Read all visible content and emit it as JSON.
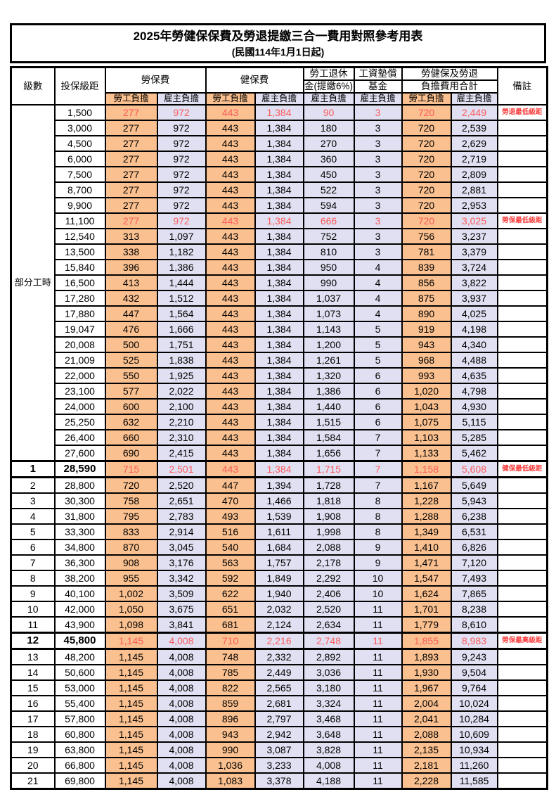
{
  "page": {
    "title": "2025年勞健保保費及勞退提繳三合一費用對照參考用表",
    "subtitle": "(民國114年1月1日起)"
  },
  "colors": {
    "employee_bg": "#FAC08F",
    "employer_bg": "#E0E0F2",
    "highlight_red": "#FB5B5B",
    "note_red": "#FA3C3C"
  },
  "header": {
    "level": "級數",
    "salary": "投保級距",
    "labor": "勞保費",
    "health": "健保費",
    "pension1": "勞工退休",
    "pension2": "金(提繳6%)",
    "fund1": "工資墊償",
    "fund2": "基金",
    "total1": "勞健保及勞退",
    "total2": "負擔費用合計",
    "remark": "備註",
    "employee": "勞工負擔",
    "employer": "雇主負擔"
  },
  "part_time_label": "部分工時",
  "rows": [
    {
      "level": "部分工時",
      "level_rowspan": 23,
      "salary": "1,500",
      "v": [
        "277",
        "972",
        "443",
        "1,384",
        "90",
        "3",
        "720",
        "2,449"
      ],
      "red": true,
      "note": "勞退最低級距"
    },
    {
      "salary": "3,000",
      "v": [
        "277",
        "972",
        "443",
        "1,384",
        "180",
        "3",
        "720",
        "2,539"
      ]
    },
    {
      "salary": "4,500",
      "v": [
        "277",
        "972",
        "443",
        "1,384",
        "270",
        "3",
        "720",
        "2,629"
      ]
    },
    {
      "salary": "6,000",
      "v": [
        "277",
        "972",
        "443",
        "1,384",
        "360",
        "3",
        "720",
        "2,719"
      ]
    },
    {
      "salary": "7,500",
      "v": [
        "277",
        "972",
        "443",
        "1,384",
        "450",
        "3",
        "720",
        "2,809"
      ]
    },
    {
      "salary": "8,700",
      "v": [
        "277",
        "972",
        "443",
        "1,384",
        "522",
        "3",
        "720",
        "2,881"
      ]
    },
    {
      "salary": "9,900",
      "v": [
        "277",
        "972",
        "443",
        "1,384",
        "594",
        "3",
        "720",
        "2,953"
      ]
    },
    {
      "salary": "11,100",
      "v": [
        "277",
        "972",
        "443",
        "1,384",
        "666",
        "3",
        "720",
        "3,025"
      ],
      "red": true,
      "note": "勞保最低級距"
    },
    {
      "salary": "12,540",
      "v": [
        "313",
        "1,097",
        "443",
        "1,384",
        "752",
        "3",
        "756",
        "3,237"
      ]
    },
    {
      "salary": "13,500",
      "v": [
        "338",
        "1,182",
        "443",
        "1,384",
        "810",
        "3",
        "781",
        "3,379"
      ]
    },
    {
      "salary": "15,840",
      "v": [
        "396",
        "1,386",
        "443",
        "1,384",
        "950",
        "4",
        "839",
        "3,724"
      ]
    },
    {
      "salary": "16,500",
      "v": [
        "413",
        "1,444",
        "443",
        "1,384",
        "990",
        "4",
        "856",
        "3,822"
      ]
    },
    {
      "salary": "17,280",
      "v": [
        "432",
        "1,512",
        "443",
        "1,384",
        "1,037",
        "4",
        "875",
        "3,937"
      ]
    },
    {
      "salary": "17,880",
      "v": [
        "447",
        "1,564",
        "443",
        "1,384",
        "1,073",
        "4",
        "890",
        "4,025"
      ]
    },
    {
      "salary": "19,047",
      "v": [
        "476",
        "1,666",
        "443",
        "1,384",
        "1,143",
        "5",
        "919",
        "4,198"
      ]
    },
    {
      "salary": "20,008",
      "v": [
        "500",
        "1,751",
        "443",
        "1,384",
        "1,200",
        "5",
        "943",
        "4,340"
      ]
    },
    {
      "salary": "21,009",
      "v": [
        "525",
        "1,838",
        "443",
        "1,384",
        "1,261",
        "5",
        "968",
        "4,488"
      ]
    },
    {
      "salary": "22,000",
      "v": [
        "550",
        "1,925",
        "443",
        "1,384",
        "1,320",
        "6",
        "993",
        "4,635"
      ]
    },
    {
      "salary": "23,100",
      "v": [
        "577",
        "2,022",
        "443",
        "1,384",
        "1,386",
        "6",
        "1,020",
        "4,798"
      ]
    },
    {
      "salary": "24,000",
      "v": [
        "600",
        "2,100",
        "443",
        "1,384",
        "1,440",
        "6",
        "1,043",
        "4,930"
      ]
    },
    {
      "salary": "25,250",
      "v": [
        "632",
        "2,210",
        "443",
        "1,384",
        "1,515",
        "6",
        "1,075",
        "5,115"
      ]
    },
    {
      "salary": "26,400",
      "v": [
        "660",
        "2,310",
        "443",
        "1,384",
        "1,584",
        "7",
        "1,103",
        "5,285"
      ]
    },
    {
      "salary": "27,600",
      "v": [
        "690",
        "2,415",
        "443",
        "1,384",
        "1,656",
        "7",
        "1,133",
        "5,462"
      ]
    },
    {
      "level": "1",
      "salary": "28,590",
      "v": [
        "715",
        "2,501",
        "443",
        "1,384",
        "1,715",
        "7",
        "1,158",
        "5,608"
      ],
      "red": true,
      "bold": true,
      "thick": true,
      "note": "健保最低級距"
    },
    {
      "level": "2",
      "salary": "28,800",
      "v": [
        "720",
        "2,520",
        "447",
        "1,394",
        "1,728",
        "7",
        "1,167",
        "5,649"
      ]
    },
    {
      "level": "3",
      "salary": "30,300",
      "v": [
        "758",
        "2,651",
        "470",
        "1,466",
        "1,818",
        "8",
        "1,228",
        "5,943"
      ]
    },
    {
      "level": "4",
      "salary": "31,800",
      "v": [
        "795",
        "2,783",
        "493",
        "1,539",
        "1,908",
        "8",
        "1,288",
        "6,238"
      ]
    },
    {
      "level": "5",
      "salary": "33,300",
      "v": [
        "833",
        "2,914",
        "516",
        "1,611",
        "1,998",
        "8",
        "1,349",
        "6,531"
      ]
    },
    {
      "level": "6",
      "salary": "34,800",
      "v": [
        "870",
        "3,045",
        "540",
        "1,684",
        "2,088",
        "9",
        "1,410",
        "6,826"
      ]
    },
    {
      "level": "7",
      "salary": "36,300",
      "v": [
        "908",
        "3,176",
        "563",
        "1,757",
        "2,178",
        "9",
        "1,471",
        "7,120"
      ]
    },
    {
      "level": "8",
      "salary": "38,200",
      "v": [
        "955",
        "3,342",
        "592",
        "1,849",
        "2,292",
        "10",
        "1,547",
        "7,493"
      ]
    },
    {
      "level": "9",
      "salary": "40,100",
      "v": [
        "1,002",
        "3,509",
        "622",
        "1,940",
        "2,406",
        "10",
        "1,624",
        "7,865"
      ]
    },
    {
      "level": "10",
      "salary": "42,000",
      "v": [
        "1,050",
        "3,675",
        "651",
        "2,032",
        "2,520",
        "11",
        "1,701",
        "8,238"
      ]
    },
    {
      "level": "11",
      "salary": "43,900",
      "v": [
        "1,098",
        "3,841",
        "681",
        "2,124",
        "2,634",
        "11",
        "1,779",
        "8,610"
      ]
    },
    {
      "level": "12",
      "salary": "45,800",
      "v": [
        "1,145",
        "4,008",
        "710",
        "2,216",
        "2,748",
        "11",
        "1,855",
        "8,983"
      ],
      "red": true,
      "bold": true,
      "thick": true,
      "note": "勞保最高級距"
    },
    {
      "level": "13",
      "salary": "48,200",
      "v": [
        "1,145",
        "4,008",
        "748",
        "2,332",
        "2,892",
        "11",
        "1,893",
        "9,243"
      ]
    },
    {
      "level": "14",
      "salary": "50,600",
      "v": [
        "1,145",
        "4,008",
        "785",
        "2,449",
        "3,036",
        "11",
        "1,930",
        "9,504"
      ]
    },
    {
      "level": "15",
      "salary": "53,000",
      "v": [
        "1,145",
        "4,008",
        "822",
        "2,565",
        "3,180",
        "11",
        "1,967",
        "9,764"
      ]
    },
    {
      "level": "16",
      "salary": "55,400",
      "v": [
        "1,145",
        "4,008",
        "859",
        "2,681",
        "3,324",
        "11",
        "2,004",
        "10,024"
      ]
    },
    {
      "level": "17",
      "salary": "57,800",
      "v": [
        "1,145",
        "4,008",
        "896",
        "2,797",
        "3,468",
        "11",
        "2,041",
        "10,284"
      ]
    },
    {
      "level": "18",
      "salary": "60,800",
      "v": [
        "1,145",
        "4,008",
        "943",
        "2,942",
        "3,648",
        "11",
        "2,088",
        "10,609"
      ]
    },
    {
      "level": "19",
      "salary": "63,800",
      "v": [
        "1,145",
        "4,008",
        "990",
        "3,087",
        "3,828",
        "11",
        "2,135",
        "10,934"
      ]
    },
    {
      "level": "20",
      "salary": "66,800",
      "v": [
        "1,145",
        "4,008",
        "1,036",
        "3,233",
        "4,008",
        "11",
        "2,181",
        "11,260"
      ]
    },
    {
      "level": "21",
      "salary": "69,800",
      "v": [
        "1,145",
        "4,008",
        "1,083",
        "3,378",
        "4,188",
        "11",
        "2,228",
        "11,585"
      ]
    }
  ],
  "column_kinds": [
    "labor-employee",
    "labor-employer",
    "health-employee",
    "health-employer",
    "pension-employer",
    "fund-employer",
    "total-employee",
    "total-employer"
  ]
}
